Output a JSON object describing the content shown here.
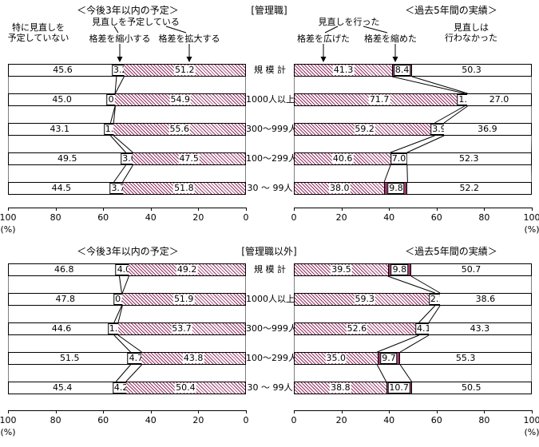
{
  "figure": {
    "background": "#ffffff",
    "colors": {
      "hatch_series": "#993366",
      "solid_series": "#993366",
      "bar_fill": "#ffffff",
      "border": "#000000"
    },
    "unit": "(%)"
  },
  "chart_data": [
    {
      "id": "managers-plan",
      "type": "bar",
      "orientation": "horizontal-stacked",
      "title": "＜今後3年以内の予定＞",
      "panel_label": "[管理職]",
      "x_direction": "right-to-left",
      "xlim": [
        0,
        100
      ],
      "ticks": [
        100,
        80,
        60,
        40,
        20,
        0
      ],
      "unit": "(%)",
      "categories": [
        "規 模 計",
        "1000人以上",
        "300〜999人",
        "100〜299人",
        "30 〜 99人"
      ],
      "series": [
        {
          "name": "特に見直しを予定していない",
          "style": "plain",
          "values": [
            45.6,
            45.0,
            43.1,
            49.5,
            44.5
          ]
        },
        {
          "name": "格差を縮小する",
          "style": "solid",
          "values": [
            3.2,
            0.1,
            1.3,
            3.0,
            3.7
          ]
        },
        {
          "name": "格差を拡大する",
          "style": "hatch",
          "values": [
            51.2,
            54.9,
            55.6,
            47.5,
            51.8
          ]
        }
      ],
      "annotations": {
        "no_plan": [
          "特に見直しを",
          "予定していない"
        ],
        "group": "見直しを予定している",
        "narrow": "格差を縮小する",
        "widen": "格差を拡大する"
      }
    },
    {
      "id": "managers-actual",
      "type": "bar",
      "orientation": "horizontal-stacked",
      "title": "＜過去5年間の実績＞",
      "panel_label": "[管理職]",
      "x_direction": "left-to-right",
      "xlim": [
        0,
        100
      ],
      "ticks": [
        0,
        20,
        40,
        60,
        80,
        100
      ],
      "unit": "(%)",
      "categories": [
        "規 模 計",
        "1000人以上",
        "300〜999人",
        "100〜299人",
        "30 〜 99人"
      ],
      "series": [
        {
          "name": "格差を広げた",
          "style": "hatch",
          "values": [
            41.3,
            71.7,
            59.2,
            40.6,
            38.0
          ]
        },
        {
          "name": "格差を縮めた",
          "style": "solid",
          "values": [
            8.4,
            1.3,
            3.9,
            7.0,
            9.8
          ]
        },
        {
          "name": "見直しは行わなかった",
          "style": "plain",
          "values": [
            50.3,
            27.0,
            36.9,
            52.3,
            52.2
          ]
        }
      ],
      "annotations": {
        "group": "見直しを行った",
        "widened": "格差を広げた",
        "narrowed": "格差を縮めた",
        "no_review": [
          "見直しは",
          "行わなかった"
        ]
      }
    },
    {
      "id": "non-managers-plan",
      "type": "bar",
      "orientation": "horizontal-stacked",
      "title": "＜今後3年以内の予定＞",
      "panel_label": "[管理職以外]",
      "x_direction": "right-to-left",
      "xlim": [
        0,
        100
      ],
      "ticks": [
        100,
        80,
        60,
        40,
        20,
        0
      ],
      "unit": "(%)",
      "categories": [
        "規 模 計",
        "1000人以上",
        "300〜999人",
        "100〜299人",
        "30 〜 99人"
      ],
      "series": [
        {
          "name": "特に見直しを予定していない",
          "style": "plain",
          "values": [
            46.8,
            47.8,
            44.6,
            51.5,
            45.4
          ]
        },
        {
          "name": "格差を縮小する",
          "style": "solid",
          "values": [
            4.0,
            0.3,
            1.7,
            4.7,
            4.2
          ]
        },
        {
          "name": "格差を拡大する",
          "style": "hatch",
          "values": [
            49.2,
            51.9,
            53.7,
            43.8,
            50.4
          ]
        }
      ]
    },
    {
      "id": "non-managers-actual",
      "type": "bar",
      "orientation": "horizontal-stacked",
      "title": "＜過去5年間の実績＞",
      "panel_label": "[管理職以外]",
      "x_direction": "left-to-right",
      "xlim": [
        0,
        100
      ],
      "ticks": [
        0,
        20,
        40,
        60,
        80,
        100
      ],
      "unit": "(%)",
      "categories": [
        "規 模 計",
        "1000人以上",
        "300〜999人",
        "100〜299人",
        "30 〜 99人"
      ],
      "series": [
        {
          "name": "格差を広げた",
          "style": "hatch",
          "values": [
            39.5,
            59.3,
            52.6,
            35.0,
            38.8
          ]
        },
        {
          "name": "格差を縮めた",
          "style": "solid",
          "values": [
            9.8,
            2.1,
            4.1,
            9.7,
            10.7
          ]
        },
        {
          "name": "見直しは行わなかった",
          "style": "plain",
          "values": [
            50.7,
            38.6,
            43.3,
            55.3,
            50.5
          ]
        }
      ]
    }
  ]
}
